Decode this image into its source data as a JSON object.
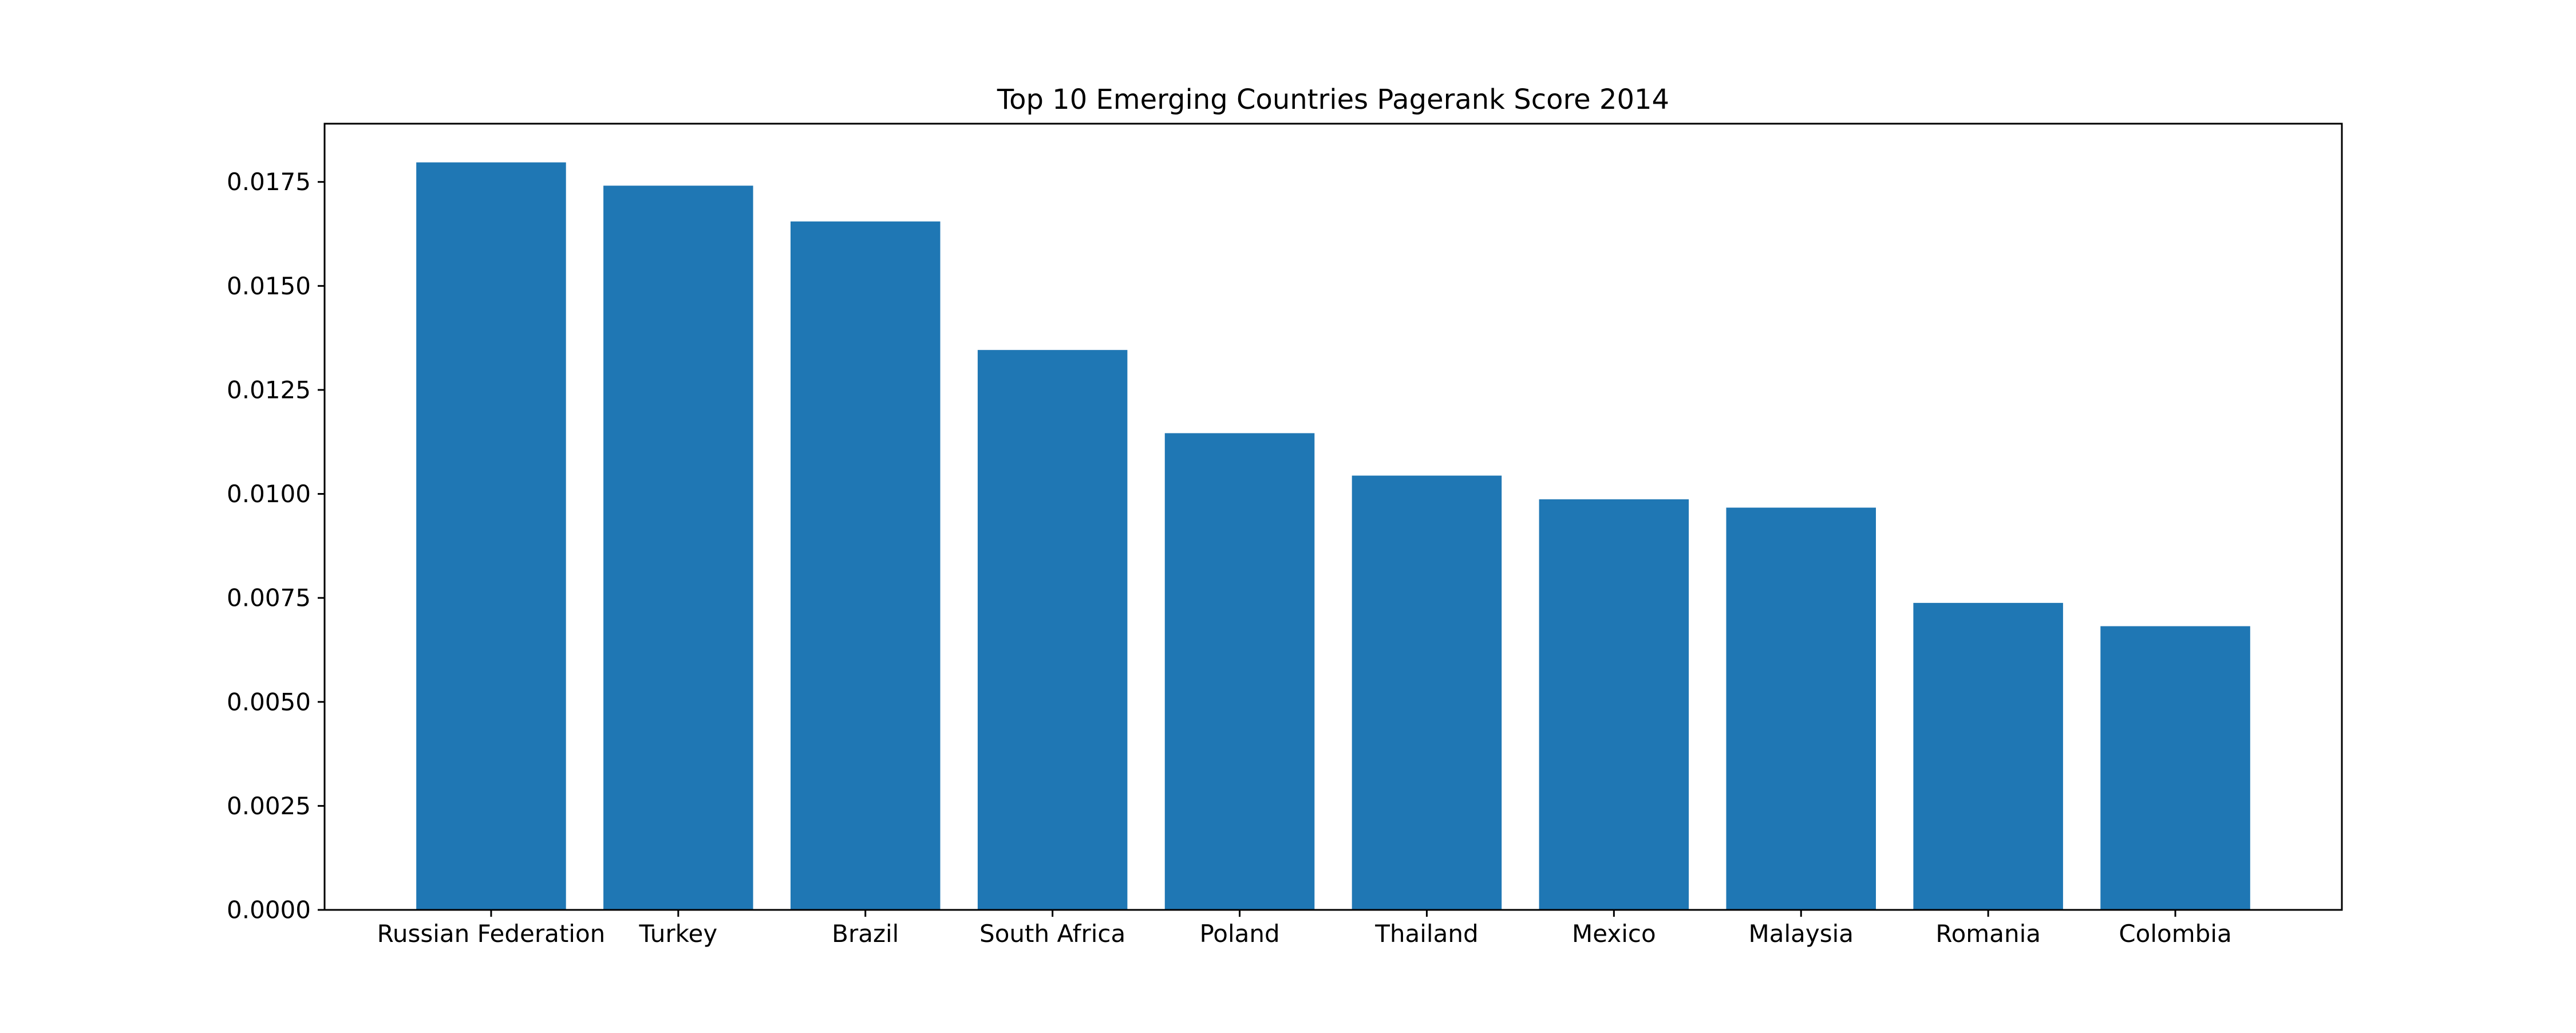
{
  "chart_data": {
    "type": "bar",
    "title": "Top 10 Emerging Countries Pagerank Score 2014",
    "xlabel": "",
    "ylabel": "",
    "categories": [
      "Russian Federation",
      "Turkey",
      "Brazil",
      "South Africa",
      "Poland",
      "Thailand",
      "Mexico",
      "Malaysia",
      "Romania",
      "Colombia"
    ],
    "values": [
      0.01797,
      0.01741,
      0.01655,
      0.01346,
      0.01146,
      0.01044,
      0.00987,
      0.00967,
      0.00738,
      0.00682
    ],
    "ylim": [
      0,
      0.0189
    ],
    "yticks": [
      0.0,
      0.0025,
      0.005,
      0.0075,
      0.01,
      0.0125,
      0.015,
      0.0175
    ],
    "ytick_labels": [
      "0.0000",
      "0.0025",
      "0.0050",
      "0.0075",
      "0.0100",
      "0.0125",
      "0.0150",
      "0.0175"
    ],
    "grid": false,
    "legend": "none",
    "bar_color": "#1f77b4"
  }
}
